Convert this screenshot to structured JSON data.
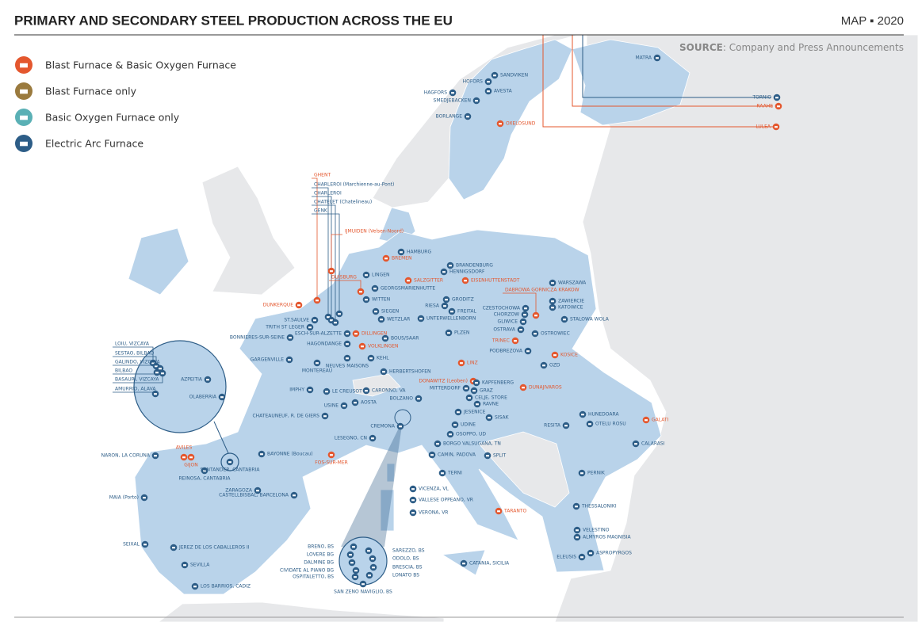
{
  "header": {
    "title": "PRIMARY AND SECONDARY STEEL PRODUCTION ACROSS THE EU",
    "edition": "MAP ▪ 2020"
  },
  "source": {
    "label": "SOURCE",
    "text": ": Company and Press Announcements"
  },
  "legend": [
    {
      "label": "Blast Furnace & Basic Oxygen Furnace",
      "color": "#e4572e"
    },
    {
      "label": "Blast Furnace only",
      "color": "#9a7a3e"
    },
    {
      "label": "Basic Oxygen Furnace only",
      "color": "#5ab0b5"
    },
    {
      "label": "Electric Arc Furnace",
      "color": "#2d5d87"
    }
  ],
  "plants": [
    {
      "label": "MATRA",
      "color": "#2d5d87"
    },
    {
      "label": "SANDVIKEN",
      "color": "#2d5d87"
    },
    {
      "label": "HOFORS",
      "color": "#2d5d87"
    },
    {
      "label": "HAGFORS",
      "color": "#2d5d87"
    },
    {
      "label": "AVESTA",
      "color": "#2d5d87"
    },
    {
      "label": "SMEDJEBACKEN",
      "color": "#2d5d87"
    },
    {
      "label": "BORLANGE",
      "color": "#2d5d87"
    },
    {
      "label": "TORNIO",
      "color": "#2d5d87"
    },
    {
      "label": "RAAHE",
      "color": "#e4572e"
    },
    {
      "label": "LULEA",
      "color": "#e4572e"
    },
    {
      "label": "OXELOSUND",
      "color": "#e4572e"
    },
    {
      "label": "GHENT",
      "color": "#e4572e"
    },
    {
      "label": "CHARLEROI (Marchienne-au-Pont)",
      "color": "#2d5d87"
    },
    {
      "label": "CHARLEROI",
      "color": "#2d5d87"
    },
    {
      "label": "CHATELET (Chatelineau)",
      "color": "#2d5d87"
    },
    {
      "label": "GENK",
      "color": "#2d5d87"
    },
    {
      "label": "IJMUIDEN (Velsen-Noord)",
      "color": "#e4572e"
    },
    {
      "label": "HAMBURG",
      "color": "#2d5d87"
    },
    {
      "label": "BREMEN",
      "color": "#e4572e"
    },
    {
      "label": "BRANDENBURG",
      "color": "#2d5d87"
    },
    {
      "label": "HENNIGSDORF",
      "color": "#2d5d87"
    },
    {
      "label": "LINGEN",
      "color": "#2d5d87"
    },
    {
      "label": "DUISBURG",
      "color": "#e4572e"
    },
    {
      "label": "SALZGITTER",
      "color": "#e4572e"
    },
    {
      "label": "EISENHUTTENSTADT",
      "color": "#e4572e"
    },
    {
      "label": "GEORGSMARIENHUTTE",
      "color": "#2d5d87"
    },
    {
      "label": "WITTEN",
      "color": "#2d5d87"
    },
    {
      "label": "DUNKERQUE",
      "color": "#e4572e"
    },
    {
      "label": "GRODITZ",
      "color": "#2d5d87"
    },
    {
      "label": "RIESA",
      "color": "#2d5d87"
    },
    {
      "label": "FREITAL",
      "color": "#2d5d87"
    },
    {
      "label": "SIEGEN",
      "color": "#2d5d87"
    },
    {
      "label": "WETZLAR",
      "color": "#2d5d87"
    },
    {
      "label": "UNTERWELLENBORN",
      "color": "#2d5d87"
    },
    {
      "label": "WARSZAWA",
      "color": "#2d5d87"
    },
    {
      "label": "DABROWA GORNICZA KRAKOW",
      "color": "#e4572e"
    },
    {
      "label": "ZAWIERCIE",
      "color": "#2d5d87"
    },
    {
      "label": "KATOWICE",
      "color": "#2d5d87"
    },
    {
      "label": "CZESTOCHOWA",
      "color": "#2d5d87"
    },
    {
      "label": "CHORZOW",
      "color": "#2d5d87"
    },
    {
      "label": "GLIWICE",
      "color": "#2d5d87"
    },
    {
      "label": "OSTRAVA",
      "color": "#2d5d87"
    },
    {
      "label": "STALOWA WOLA",
      "color": "#2d5d87"
    },
    {
      "label": "ST.SAULVE",
      "color": "#2d5d87"
    },
    {
      "label": "TRITH ST LEGER",
      "color": "#2d5d87"
    },
    {
      "label": "ESCH-SUR-ALZETTE",
      "color": "#2d5d87"
    },
    {
      "label": "DILLINGEN",
      "color": "#e4572e"
    },
    {
      "label": "BONNIERES-SUR-SEINE",
      "color": "#2d5d87"
    },
    {
      "label": "HAGONDANGE",
      "color": "#2d5d87"
    },
    {
      "label": "VOLKLINGEN",
      "color": "#e4572e"
    },
    {
      "label": "BOUS/SAAR",
      "color": "#2d5d87"
    },
    {
      "label": "PLZEN",
      "color": "#2d5d87"
    },
    {
      "label": "TRINEC",
      "color": "#e4572e"
    },
    {
      "label": "OSTROWIEC",
      "color": "#2d5d87"
    },
    {
      "label": "GARGENVILLE",
      "color": "#2d5d87"
    },
    {
      "label": "KEHL",
      "color": "#2d5d87"
    },
    {
      "label": "MONTEREAU",
      "color": "#2d5d87"
    },
    {
      "label": "NEUVES MAISONS",
      "color": "#2d5d87"
    },
    {
      "label": "LINZ",
      "color": "#e4572e"
    },
    {
      "label": "PODBREZOVA",
      "color": "#2d5d87"
    },
    {
      "label": "KOSICE",
      "color": "#e4572e"
    },
    {
      "label": "OZD",
      "color": "#2d5d87"
    },
    {
      "label": "HERBERTSHOFEN",
      "color": "#2d5d87"
    },
    {
      "label": "DONAWITZ (Leoben)",
      "color": "#e4572e"
    },
    {
      "label": "KAPFENBERG",
      "color": "#2d5d87"
    },
    {
      "label": "MITTERDORF",
      "color": "#2d5d87"
    },
    {
      "label": "GRAZ",
      "color": "#2d5d87"
    },
    {
      "label": "DUNAJIVAROS",
      "color": "#e4572e"
    },
    {
      "label": "IMPHY",
      "color": "#2d5d87"
    },
    {
      "label": "LE CREUSOT",
      "color": "#2d5d87"
    },
    {
      "label": "CARONNO, VA",
      "color": "#2d5d87"
    },
    {
      "label": "BOLZANO",
      "color": "#2d5d87"
    },
    {
      "label": "USINE",
      "color": "#2d5d87"
    },
    {
      "label": "AOSTA",
      "color": "#2d5d87"
    },
    {
      "label": "CELJE, STORE",
      "color": "#2d5d87"
    },
    {
      "label": "RAVNE",
      "color": "#2d5d87"
    },
    {
      "label": "JESENICE",
      "color": "#2d5d87"
    },
    {
      "label": "SISAK",
      "color": "#2d5d87"
    },
    {
      "label": "HUNEDOARA",
      "color": "#2d5d87"
    },
    {
      "label": "GALATI",
      "color": "#e4572e"
    },
    {
      "label": "RESITA",
      "color": "#2d5d87"
    },
    {
      "label": "OTELU ROSU",
      "color": "#2d5d87"
    },
    {
      "label": "CHATEAUNEUF, R. DE GIERS",
      "color": "#2d5d87"
    },
    {
      "label": "CREMONA",
      "color": "#2d5d87"
    },
    {
      "label": "UDINE",
      "color": "#2d5d87"
    },
    {
      "label": "OSOPPO, UD",
      "color": "#2d5d87"
    },
    {
      "label": "LESEGNO, CN",
      "color": "#2d5d87"
    },
    {
      "label": "BORGO VALSUGANA, TN",
      "color": "#2d5d87"
    },
    {
      "label": "CALARASI",
      "color": "#2d5d87"
    },
    {
      "label": "AVILES",
      "color": "#e4572e"
    },
    {
      "label": "GIJON",
      "color": "#e4572e"
    },
    {
      "label": "NARON, LA CORUNA",
      "color": "#2d5d87"
    },
    {
      "label": "BAYONNE (Boucau)",
      "color": "#2d5d87"
    },
    {
      "label": "FOS-SUR-MER",
      "color": "#e4572e"
    },
    {
      "label": "CAMIN, PADOVA",
      "color": "#2d5d87"
    },
    {
      "label": "SPLIT",
      "color": "#2d5d87"
    },
    {
      "label": "REINOSA, CANTABRIA",
      "color": "#2d5d87"
    },
    {
      "label": "SANTANDER, CANTABRIA",
      "color": "#2d5d87"
    },
    {
      "label": "ZARAGOZA",
      "color": "#2d5d87"
    },
    {
      "label": "CASTELLBISBAL, BARCELONA",
      "color": "#2d5d87"
    },
    {
      "label": "TERNI",
      "color": "#2d5d87"
    },
    {
      "label": "PERNIK",
      "color": "#2d5d87"
    },
    {
      "label": "MAIA (Porto)",
      "color": "#2d5d87"
    },
    {
      "label": "VICENZA, VL",
      "color": "#2d5d87"
    },
    {
      "label": "VALLESE OPPEANO, VR",
      "color": "#2d5d87"
    },
    {
      "label": "VERONA, VR",
      "color": "#2d5d87"
    },
    {
      "label": "TARANTO",
      "color": "#e4572e"
    },
    {
      "label": "THESSALONIKI",
      "color": "#2d5d87"
    },
    {
      "label": "SEIXAL",
      "color": "#2d5d87"
    },
    {
      "label": "JEREZ DE LOS CABALLEROS II",
      "color": "#2d5d87"
    },
    {
      "label": "VELESTINO",
      "color": "#2d5d87"
    },
    {
      "label": "ALMYROS MAGNISIA",
      "color": "#2d5d87"
    },
    {
      "label": "ASPROPYRGOS",
      "color": "#2d5d87"
    },
    {
      "label": "ELEUSIS",
      "color": "#2d5d87"
    },
    {
      "label": "SEVILLA",
      "color": "#2d5d87"
    },
    {
      "label": "CATANIA, SICILIA",
      "color": "#2d5d87"
    },
    {
      "label": "LOS BARRIOS, CADIZ",
      "color": "#2d5d87"
    }
  ],
  "spain_inset": [
    {
      "label": "LOIU, VIZCAYA",
      "color": "#2d5d87"
    },
    {
      "label": "SESTAO, BILBAO",
      "color": "#2d5d87"
    },
    {
      "label": "GALINDO, VIZCAYA",
      "color": "#2d5d87"
    },
    {
      "label": "BILBAO",
      "color": "#2d5d87"
    },
    {
      "label": "BASAURI, VIZCAYA",
      "color": "#2d5d87"
    },
    {
      "label": "AMURRIO, ALAVA",
      "color": "#2d5d87"
    },
    {
      "label": "AZPEITIA",
      "color": "#2d5d87"
    },
    {
      "label": "OLABERRIA",
      "color": "#2d5d87"
    }
  ],
  "italy_inset": [
    {
      "label": "BRENO, BS",
      "color": "#2d5d87"
    },
    {
      "label": "LOVERE BG",
      "color": "#2d5d87"
    },
    {
      "label": "DALMINE BG",
      "color": "#2d5d87"
    },
    {
      "label": "CIVIDATE AL PIANO BG",
      "color": "#2d5d87"
    },
    {
      "label": "OSPITALETTO, BS",
      "color": "#2d5d87"
    },
    {
      "label": "SAREZZO, BS",
      "color": "#2d5d87"
    },
    {
      "label": "ODOLO, BS",
      "color": "#2d5d87"
    },
    {
      "label": "BRESCIA, BS",
      "color": "#2d5d87"
    },
    {
      "label": "LONATO BS",
      "color": "#2d5d87"
    },
    {
      "label": "SAN ZENO NAVIGLIO, BS",
      "color": "#2d5d87"
    }
  ]
}
